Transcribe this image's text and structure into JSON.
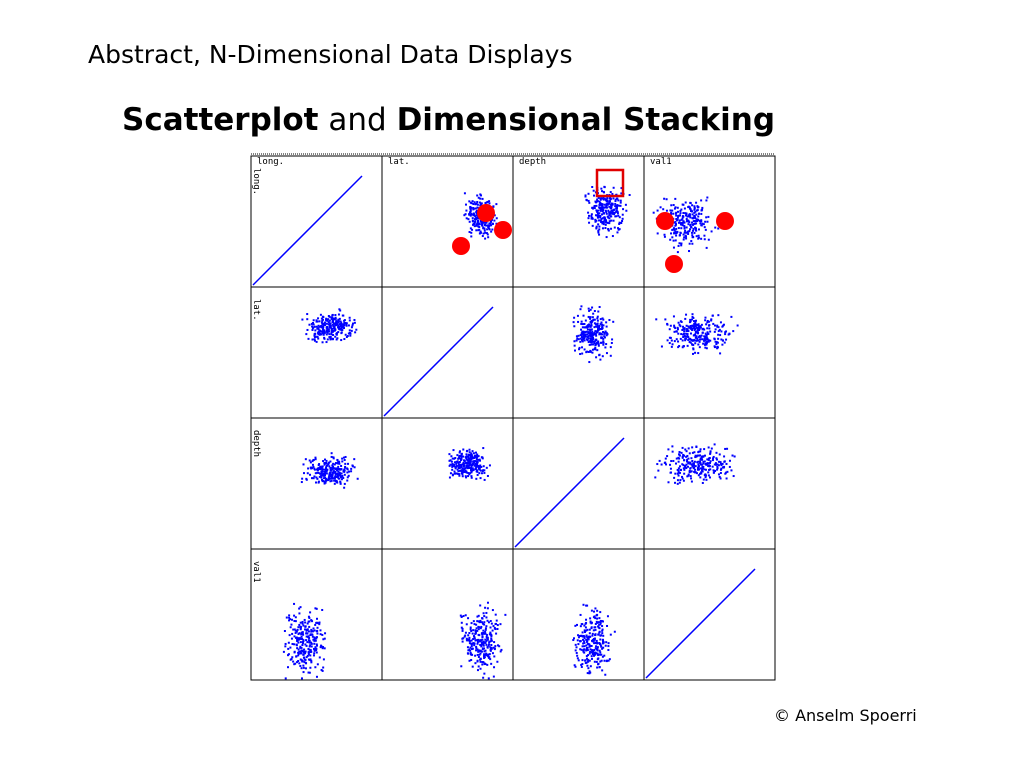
{
  "header": {
    "title": "Abstract, N-Dimensional Data Displays"
  },
  "slide_title": {
    "parts": [
      "Scatterplot",
      "and",
      "Dimensional Stacking"
    ]
  },
  "matrix": {
    "column_labels": [
      "long.",
      "lat.",
      "depth",
      "val1"
    ],
    "row_labels": [
      "long.",
      "lat.",
      "depth",
      "val1"
    ]
  },
  "footer": {
    "copyright": "© Anselm Spoerri"
  }
}
